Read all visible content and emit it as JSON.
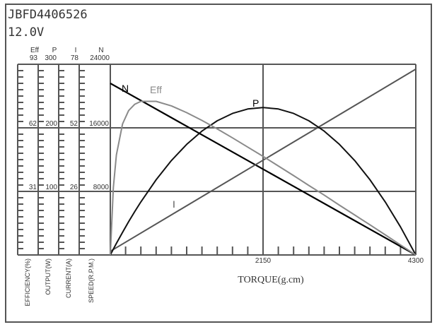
{
  "header": {
    "model": "JBFD4406526",
    "voltage": "12.0V"
  },
  "chart_data": {
    "type": "line",
    "xlabel": "TORQUE(g.cm)",
    "xlim": [
      0,
      4300
    ],
    "x_tick_labels": [
      "2150",
      "4300"
    ],
    "grid": true,
    "axes": [
      {
        "key": "eff",
        "symbol": "Eff",
        "label": "EFFICIENCY(%)",
        "max": 93,
        "ticks": [
          "93",
          "62",
          "31"
        ]
      },
      {
        "key": "p",
        "symbol": "P",
        "label": "OUTPUT(W)",
        "max": 300,
        "ticks": [
          "300",
          "200",
          "100"
        ]
      },
      {
        "key": "i",
        "symbol": "I",
        "label": "CURRENT(A)",
        "max": 78,
        "ticks": [
          "78",
          "52",
          "26"
        ]
      },
      {
        "key": "n",
        "symbol": "N",
        "label": "SPEED(R.P.M.)",
        "max": 24000,
        "ticks": [
          "24000",
          "16000",
          "8000"
        ]
      }
    ],
    "series": [
      {
        "name": "N",
        "axis": "n",
        "color": "#000000",
        "x": [
          0,
          4300
        ],
        "y": [
          21600,
          0
        ]
      },
      {
        "name": "I",
        "axis": "i",
        "color": "#555555",
        "x": [
          0,
          4300
        ],
        "y": [
          1.5,
          76
        ]
      },
      {
        "name": "P",
        "axis": "p",
        "color": "#111111",
        "x": [
          0,
          43,
          86,
          172,
          258,
          344,
          430,
          645,
          860,
          1075,
          1290,
          1505,
          1720,
          1935,
          2150,
          2365,
          2580,
          2795,
          3010,
          3225,
          3440,
          3655,
          3870,
          4085,
          4300
        ],
        "y": [
          0,
          9.2,
          18.2,
          35.6,
          52.3,
          68.3,
          83.5,
          118.3,
          148.5,
          174.0,
          194.9,
          211.1,
          222.7,
          229.7,
          232,
          229.7,
          222.7,
          211.1,
          194.9,
          174.0,
          148.5,
          118.3,
          83.5,
          44.1,
          0
        ]
      },
      {
        "name": "Eff",
        "axis": "eff",
        "color": "#8a8a8a",
        "x": [
          0,
          43,
          86,
          172,
          258,
          344,
          430,
          645,
          860,
          1075,
          1290,
          1505,
          1720,
          1935,
          2150,
          2365,
          2580,
          2795,
          3010,
          3225,
          3440,
          3655,
          3870,
          4085,
          4300
        ],
        "y": [
          0,
          32.9,
          48.8,
          63.9,
          70.4,
          73.5,
          74.9,
          74.9,
          72.7,
          69.4,
          65.6,
          61.5,
          57.1,
          52.6,
          48.1,
          43.4,
          38.7,
          33.9,
          29.2,
          24.3,
          19.5,
          14.7,
          9.8,
          4.9,
          0
        ]
      }
    ]
  }
}
